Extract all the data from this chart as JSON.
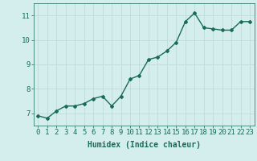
{
  "x": [
    0,
    1,
    2,
    3,
    4,
    5,
    6,
    7,
    8,
    9,
    10,
    11,
    12,
    13,
    14,
    15,
    16,
    17,
    18,
    19,
    20,
    21,
    22,
    23
  ],
  "y": [
    6.9,
    6.8,
    7.1,
    7.3,
    7.3,
    7.4,
    7.6,
    7.7,
    7.3,
    7.7,
    8.4,
    8.55,
    9.2,
    9.3,
    9.55,
    9.9,
    10.75,
    11.1,
    10.5,
    10.45,
    10.4,
    10.4,
    10.75,
    10.75
  ],
  "line_color": "#1a6b5a",
  "marker": "D",
  "marker_size": 2.0,
  "bg_color": "#d4eeee",
  "grid_color": "#c0dada",
  "xlabel": "Humidex (Indice chaleur)",
  "ylim": [
    6.5,
    11.5
  ],
  "xlim": [
    -0.5,
    23.5
  ],
  "yticks": [
    7,
    8,
    9,
    10,
    11
  ],
  "xticks": [
    0,
    1,
    2,
    3,
    4,
    5,
    6,
    7,
    8,
    9,
    10,
    11,
    12,
    13,
    14,
    15,
    16,
    17,
    18,
    19,
    20,
    21,
    22,
    23
  ],
  "xlabel_fontsize": 7,
  "tick_fontsize": 6.5,
  "line_width": 1.0
}
